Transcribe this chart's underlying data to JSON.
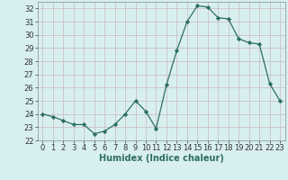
{
  "x": [
    0,
    1,
    2,
    3,
    4,
    5,
    6,
    7,
    8,
    9,
    10,
    11,
    12,
    13,
    14,
    15,
    16,
    17,
    18,
    19,
    20,
    21,
    22,
    23
  ],
  "y": [
    24.0,
    23.8,
    23.5,
    23.2,
    23.2,
    22.5,
    22.7,
    23.2,
    24.0,
    25.0,
    24.2,
    22.9,
    26.2,
    28.8,
    31.0,
    32.2,
    32.1,
    31.3,
    31.2,
    29.7,
    29.4,
    29.3,
    26.3,
    25.0
  ],
  "line_color": "#2d6e63",
  "marker": "D",
  "marker_size": 2.2,
  "bg_color": "#d8eff0",
  "grid_color": "#c8b8b8",
  "xlabel": "Humidex (Indice chaleur)",
  "ylabel": "",
  "title": "",
  "xlim": [
    -0.5,
    23.5
  ],
  "ylim": [
    22,
    32.5
  ],
  "yticks": [
    22,
    23,
    24,
    25,
    26,
    27,
    28,
    29,
    30,
    31,
    32
  ],
  "xticks": [
    0,
    1,
    2,
    3,
    4,
    5,
    6,
    7,
    8,
    9,
    10,
    11,
    12,
    13,
    14,
    15,
    16,
    17,
    18,
    19,
    20,
    21,
    22,
    23
  ],
  "tick_fontsize": 6.0,
  "xlabel_fontsize": 7.0
}
